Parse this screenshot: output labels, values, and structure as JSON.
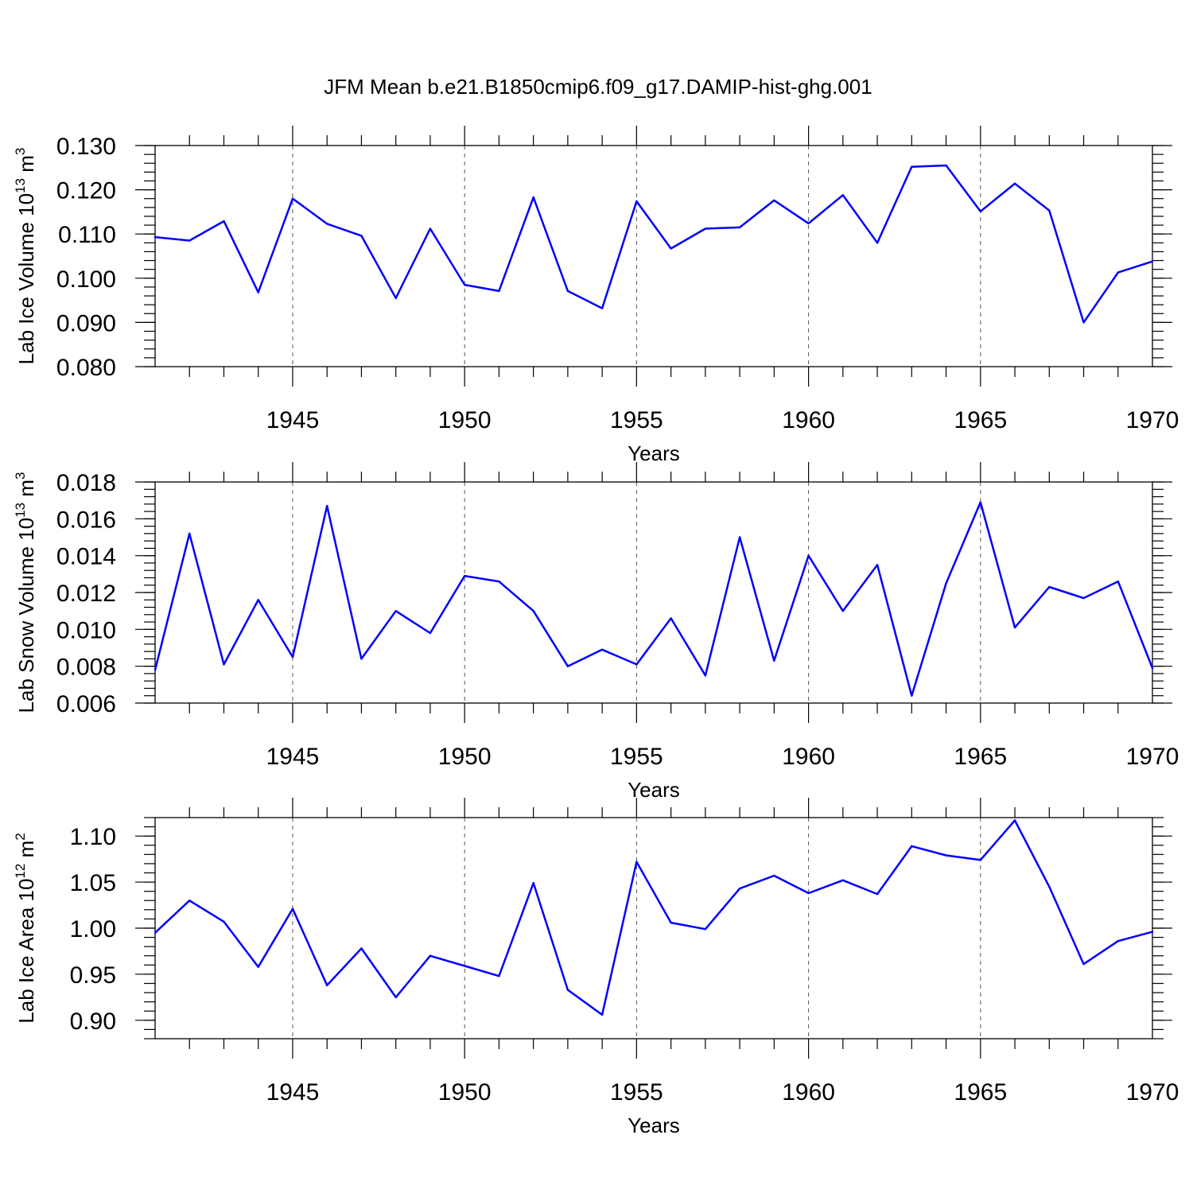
{
  "title": "JFM Mean b.e21.B1850cmip6.f09_g17.DAMIP-hist-ghg.001",
  "line_color": "#0000ff",
  "chart_data": [
    {
      "type": "line",
      "id": "ice-volume",
      "ylabel": "Lab Ice Volume 10",
      "ylabel_exp": "13",
      "ylabel_unit": " m",
      "ylabel_unit_exp": "3",
      "xlabel": "Years",
      "xlim": [
        1941,
        1970
      ],
      "ylim": [
        0.08,
        0.13
      ],
      "yticks": [
        0.08,
        0.09,
        0.1,
        0.11,
        0.12,
        0.13
      ],
      "ytick_labels": [
        "0.080",
        "0.090",
        "0.100",
        "0.110",
        "0.120",
        "0.130"
      ],
      "yminor_step": 0.002,
      "xticks": [
        1945,
        1950,
        1955,
        1960,
        1965,
        1970
      ],
      "xtick_labels": [
        "1945",
        "1950",
        "1955",
        "1960",
        "1965",
        "1970"
      ],
      "x": [
        1941,
        1942,
        1943,
        1944,
        1945,
        1946,
        1947,
        1948,
        1949,
        1950,
        1951,
        1952,
        1953,
        1954,
        1955,
        1956,
        1957,
        1958,
        1959,
        1960,
        1961,
        1962,
        1963,
        1964,
        1965,
        1966,
        1967,
        1968,
        1969,
        1970
      ],
      "values": [
        0.1093,
        0.1085,
        0.1129,
        0.0968,
        0.118,
        0.1123,
        0.1096,
        0.0955,
        0.1112,
        0.0985,
        0.0971,
        0.1183,
        0.0971,
        0.0932,
        0.1174,
        0.1067,
        0.1112,
        0.1115,
        0.1176,
        0.1124,
        0.1188,
        0.108,
        0.1252,
        0.1255,
        0.1151,
        0.1214,
        0.1153,
        0.09,
        0.1013,
        0.1038
      ]
    },
    {
      "type": "line",
      "id": "snow-volume",
      "ylabel": "Lab Snow Volume 10",
      "ylabel_exp": "13",
      "ylabel_unit": " m",
      "ylabel_unit_exp": "3",
      "xlabel": "Years",
      "xlim": [
        1941,
        1970
      ],
      "ylim": [
        0.006,
        0.018
      ],
      "yticks": [
        0.006,
        0.008,
        0.01,
        0.012,
        0.014,
        0.016,
        0.018
      ],
      "ytick_labels": [
        "0.006",
        "0.008",
        "0.010",
        "0.012",
        "0.014",
        "0.016",
        "0.018"
      ],
      "yminor_step": 0.0004,
      "xticks": [
        1945,
        1950,
        1955,
        1960,
        1965,
        1970
      ],
      "xtick_labels": [
        "1945",
        "1950",
        "1955",
        "1960",
        "1965",
        "1970"
      ],
      "x": [
        1941,
        1942,
        1943,
        1944,
        1945,
        1946,
        1947,
        1948,
        1949,
        1950,
        1951,
        1952,
        1953,
        1954,
        1955,
        1956,
        1957,
        1958,
        1959,
        1960,
        1961,
        1962,
        1963,
        1964,
        1965,
        1966,
        1967,
        1968,
        1969,
        1970
      ],
      "values": [
        0.0078,
        0.0152,
        0.0081,
        0.0116,
        0.0085,
        0.0167,
        0.0084,
        0.011,
        0.0098,
        0.0129,
        0.0126,
        0.011,
        0.008,
        0.0089,
        0.0081,
        0.0106,
        0.0075,
        0.015,
        0.0083,
        0.014,
        0.011,
        0.0135,
        0.0064,
        0.0125,
        0.0169,
        0.0101,
        0.0123,
        0.0117,
        0.0126,
        0.0079
      ]
    },
    {
      "type": "line",
      "id": "ice-area",
      "ylabel": "Lab Ice Area 10",
      "ylabel_exp": "12",
      "ylabel_unit": " m",
      "ylabel_unit_exp": "2",
      "xlabel": "Years",
      "xlim": [
        1941,
        1970
      ],
      "ylim": [
        0.88,
        1.12
      ],
      "yticks": [
        0.9,
        0.95,
        1.0,
        1.05,
        1.1
      ],
      "ytick_labels": [
        "0.90",
        "0.95",
        "1.00",
        "1.05",
        "1.10"
      ],
      "yminor_step": 0.01,
      "xticks": [
        1945,
        1950,
        1955,
        1960,
        1965,
        1970
      ],
      "xtick_labels": [
        "1945",
        "1950",
        "1955",
        "1960",
        "1965",
        "1970"
      ],
      "x": [
        1941,
        1942,
        1943,
        1944,
        1945,
        1946,
        1947,
        1948,
        1949,
        1950,
        1951,
        1952,
        1953,
        1954,
        1955,
        1956,
        1957,
        1958,
        1959,
        1960,
        1961,
        1962,
        1963,
        1964,
        1965,
        1966,
        1967,
        1968,
        1969,
        1970
      ],
      "values": [
        0.995,
        1.03,
        1.007,
        0.958,
        1.021,
        0.938,
        0.978,
        0.925,
        0.97,
        0.959,
        0.948,
        1.049,
        0.933,
        0.906,
        1.072,
        1.006,
        0.999,
        1.043,
        1.057,
        1.038,
        1.052,
        1.037,
        1.089,
        1.079,
        1.074,
        1.117,
        1.045,
        0.961,
        0.986,
        0.996
      ]
    }
  ]
}
